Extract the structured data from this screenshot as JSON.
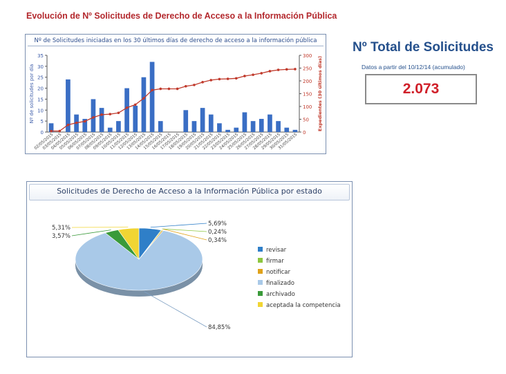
{
  "page_title": "Evolución de Nº Solicitudes de Derecho de Acceso a la Información Pública",
  "total": {
    "title": "Nº Total de Solicitudes",
    "subtitle": "Datos a partir del 10/12/14 (acumulado)",
    "value": "2.073"
  },
  "chart_data": [
    {
      "type": "bar",
      "title": "Nº de Solicitudes iniciadas en los 30 últimos días de derecho de acceso a la información pública",
      "ylabel": "Nº de solicitudes por día",
      "y2label": "Expedientes (30 últimos días)",
      "ylim": [
        0,
        35
      ],
      "y2lim": [
        0,
        300
      ],
      "yticks": [
        0,
        5,
        10,
        15,
        20,
        25,
        30,
        35
      ],
      "y2ticks": [
        0,
        50,
        100,
        150,
        200,
        250,
        300
      ],
      "grid": false,
      "categories": [
        "02/05/2015",
        "03/05/2015",
        "04/05/2015",
        "05/05/2015",
        "06/05/2015",
        "07/05/2015",
        "08/05/2015",
        "09/05/2015",
        "10/05/2015",
        "11/05/2015",
        "12/05/2015",
        "13/05/2015",
        "14/05/2015",
        "15/05/2015",
        "16/05/2015",
        "17/05/2015",
        "18/05/2015",
        "19/05/2015",
        "20/05/2015",
        "21/05/2015",
        "22/05/2015",
        "23/05/2015",
        "24/05/2015",
        "25/05/2015",
        "26/05/2015",
        "27/05/2015",
        "28/05/2015",
        "29/05/2015",
        "30/05/2015",
        "31/05/2015"
      ],
      "series": [
        {
          "kind": "bar",
          "color": "#3a6ec4",
          "values": [
            4,
            0,
            24,
            8,
            6,
            15,
            11,
            2,
            5,
            20,
            12,
            25,
            32,
            5,
            0,
            0,
            10,
            5,
            11,
            8,
            4,
            1,
            2,
            9,
            5,
            6,
            8,
            5,
            2,
            1
          ]
        },
        {
          "kind": "line",
          "axis": "right",
          "color": "#c0392b",
          "values": [
            4,
            4,
            28,
            36,
            42,
            57,
            68,
            70,
            75,
            95,
            107,
            132,
            164,
            169,
            169,
            169,
            179,
            184,
            195,
            203,
            207,
            208,
            210,
            219,
            224,
            230,
            238,
            243,
            245,
            246
          ]
        }
      ]
    },
    {
      "type": "pie",
      "title": "Solicitudes de Derecho de Acceso a la Información Pública por estado",
      "legend_position": "right",
      "slices": [
        {
          "label": "revisar",
          "value": 5.69,
          "text": "5,69%",
          "color": "#2f7fc8"
        },
        {
          "label": "firmar",
          "value": 0.24,
          "text": "0,24%",
          "color": "#8dc63f"
        },
        {
          "label": "notificar",
          "value": 0.34,
          "text": "0,34%",
          "color": "#e0a21a"
        },
        {
          "label": "finalizado",
          "value": 84.85,
          "text": "84,85%",
          "color": "#a9c9e8"
        },
        {
          "label": "archivado",
          "value": 3.57,
          "text": "3,57%",
          "color": "#3a9a3a"
        },
        {
          "label": "aceptada la competencia",
          "value": 5.31,
          "text": "5,31%",
          "color": "#f1d533"
        }
      ]
    }
  ]
}
